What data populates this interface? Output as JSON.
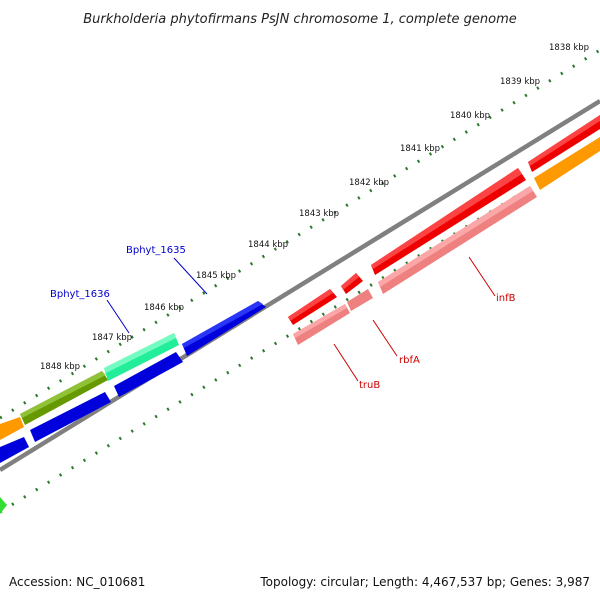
{
  "title": "Burkholderia phytofirmans PsJN chromosome 1, complete genome",
  "footer": {
    "accession": "Accession: NC_010681",
    "summary": "Topology: circular; Length: 4,467,537 bp; Genes: 3,987"
  },
  "ticks": [
    "1838 kbp",
    "1839 kbp",
    "1840 kbp",
    "1841 kbp",
    "1842 kbp",
    "1843 kbp",
    "1844 kbp",
    "1845 kbp",
    "1846 kbp",
    "1847 kbp",
    "1848 kbp"
  ],
  "gene_labels": [
    {
      "id": "bphyt-1635",
      "text": "Bphyt_1635",
      "color": "#0000cc"
    },
    {
      "id": "bphyt-1636",
      "text": "Bphyt_1636",
      "color": "#0000cc"
    },
    {
      "id": "infb",
      "text": "infB",
      "color": "#cc0000"
    },
    {
      "id": "rbfa",
      "text": "rbfA",
      "color": "#cc0000"
    },
    {
      "id": "trub",
      "text": "truB",
      "color": "#cc0000"
    }
  ],
  "colors": {
    "backbone": "#808080",
    "tick_dot": "#2a7a2a",
    "red": "#ee0000",
    "pink": "#ee8080",
    "blue": "#0000dd",
    "orange": "#ff9900",
    "olive": "#669900",
    "teal": "#22ee99",
    "green": "#33dd33"
  }
}
